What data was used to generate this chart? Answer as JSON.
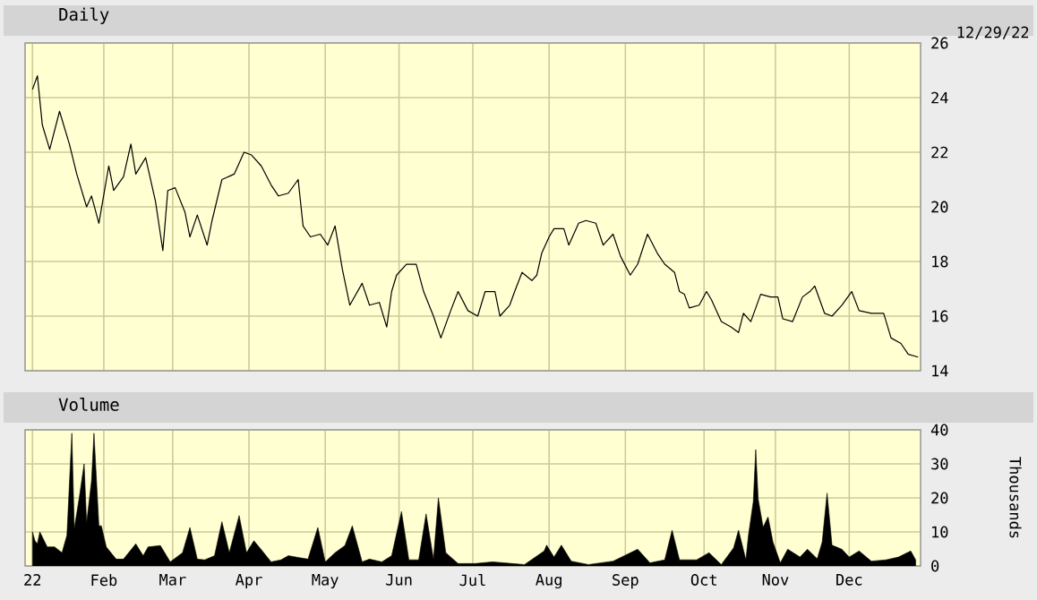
{
  "chart_data": [
    {
      "type": "line",
      "title": "Daily",
      "annotations": [
        "12/29/22"
      ],
      "color": "#000000",
      "grid": true,
      "tick_labels": "y",
      "xlim": [
        "2021-12-31",
        "2022-12-30"
      ],
      "ylim": [
        14,
        26
      ],
      "yticks": [
        14,
        16,
        18,
        20,
        22,
        24,
        26
      ],
      "xticks": [
        {
          "value": "2022-01-03",
          "label": null
        },
        {
          "value": "2022-02-01",
          "label": null
        },
        {
          "value": "2022-03-01",
          "label": null
        },
        {
          "value": "2022-04-01",
          "label": null
        },
        {
          "value": "2022-05-02",
          "label": null
        },
        {
          "value": "2022-06-01",
          "label": null
        },
        {
          "value": "2022-07-01",
          "label": null
        },
        {
          "value": "2022-08-01",
          "label": null
        },
        {
          "value": "2022-09-01",
          "label": null
        },
        {
          "value": "2022-10-03",
          "label": null
        },
        {
          "value": "2022-11-01",
          "label": null
        },
        {
          "value": "2022-12-01",
          "label": null
        }
      ],
      "x": [
        "2022-01-03",
        "2022-01-05",
        "2022-01-07",
        "2022-01-10",
        "2022-01-14",
        "2022-01-18",
        "2022-01-21",
        "2022-01-25",
        "2022-01-27",
        "2022-01-30",
        "2022-02-03",
        "2022-02-05",
        "2022-02-09",
        "2022-02-12",
        "2022-02-14",
        "2022-02-18",
        "2022-02-22",
        "2022-02-25",
        "2022-02-27",
        "2022-03-02",
        "2022-03-06",
        "2022-03-08",
        "2022-03-11",
        "2022-03-15",
        "2022-03-17",
        "2022-03-21",
        "2022-03-26",
        "2022-03-30",
        "2022-04-02",
        "2022-04-06",
        "2022-04-10",
        "2022-04-13",
        "2022-04-17",
        "2022-04-21",
        "2022-04-23",
        "2022-04-26",
        "2022-04-30",
        "2022-05-03",
        "2022-05-06",
        "2022-05-09",
        "2022-05-12",
        "2022-05-17",
        "2022-05-20",
        "2022-05-24",
        "2022-05-27",
        "2022-05-29",
        "2022-05-31",
        "2022-06-04",
        "2022-06-08",
        "2022-06-11",
        "2022-06-15",
        "2022-06-18",
        "2022-06-22",
        "2022-06-25",
        "2022-06-29",
        "2022-07-03",
        "2022-07-06",
        "2022-07-10",
        "2022-07-12",
        "2022-07-16",
        "2022-07-18",
        "2022-07-21",
        "2022-07-25",
        "2022-07-27",
        "2022-07-29",
        "2022-08-01",
        "2022-08-03",
        "2022-08-07",
        "2022-08-09",
        "2022-08-13",
        "2022-08-16",
        "2022-08-20",
        "2022-08-23",
        "2022-08-27",
        "2022-08-30",
        "2022-09-03",
        "2022-09-06",
        "2022-09-10",
        "2022-09-14",
        "2022-09-17",
        "2022-09-21",
        "2022-09-23",
        "2022-09-25",
        "2022-09-27",
        "2022-10-01",
        "2022-10-04",
        "2022-10-06",
        "2022-10-10",
        "2022-10-14",
        "2022-10-17",
        "2022-10-19",
        "2022-10-22",
        "2022-10-26",
        "2022-10-30",
        "2022-11-02",
        "2022-11-04",
        "2022-11-08",
        "2022-11-12",
        "2022-11-15",
        "2022-11-17",
        "2022-11-21",
        "2022-11-24",
        "2022-11-28",
        "2022-12-02",
        "2022-12-05",
        "2022-12-10",
        "2022-12-15",
        "2022-12-18",
        "2022-12-22",
        "2022-12-25",
        "2022-12-29"
      ],
      "values": [
        24.3,
        24.8,
        23.0,
        22.1,
        23.5,
        22.3,
        21.2,
        20.0,
        20.4,
        19.4,
        21.5,
        20.6,
        21.1,
        22.3,
        21.2,
        21.8,
        20.2,
        18.4,
        20.6,
        20.7,
        19.8,
        18.9,
        19.7,
        18.6,
        19.5,
        21.0,
        21.2,
        22.0,
        21.9,
        21.5,
        20.8,
        20.4,
        20.5,
        21.0,
        19.3,
        18.9,
        19.0,
        18.6,
        19.3,
        17.7,
        16.4,
        17.2,
        16.4,
        16.5,
        15.6,
        16.9,
        17.5,
        17.9,
        17.9,
        16.9,
        16.0,
        15.2,
        16.2,
        16.9,
        16.2,
        16.0,
        16.9,
        16.9,
        16.0,
        16.4,
        16.9,
        17.6,
        17.3,
        17.5,
        18.3,
        18.9,
        19.2,
        19.2,
        18.6,
        19.4,
        19.5,
        19.4,
        18.6,
        19.0,
        18.2,
        17.5,
        17.9,
        19.0,
        18.3,
        17.9,
        17.6,
        16.9,
        16.8,
        16.3,
        16.4,
        16.9,
        16.6,
        15.8,
        15.6,
        15.4,
        16.1,
        15.8,
        16.8,
        16.7,
        16.7,
        15.9,
        15.8,
        16.7,
        16.9,
        17.1,
        16.1,
        16.0,
        16.4,
        16.9,
        16.2,
        16.1,
        16.1,
        15.2,
        15.0,
        14.6,
        14.5
      ]
    },
    {
      "type": "area",
      "title": "Volume",
      "ylabel": "Thousands",
      "color": "#000000",
      "grid": true,
      "xlim": [
        "2021-12-31",
        "2022-12-30"
      ],
      "ylim": [
        0,
        40
      ],
      "yticks": [
        0,
        10,
        20,
        30,
        40
      ],
      "xticks": [
        {
          "value": "2022-01-03",
          "label": "22"
        },
        {
          "value": "2022-02-01",
          "label": "Feb"
        },
        {
          "value": "2022-03-01",
          "label": "Mar"
        },
        {
          "value": "2022-04-01",
          "label": "Apr"
        },
        {
          "value": "2022-05-02",
          "label": "May"
        },
        {
          "value": "2022-06-01",
          "label": "Jun"
        },
        {
          "value": "2022-07-01",
          "label": "Jul"
        },
        {
          "value": "2022-08-01",
          "label": "Aug"
        },
        {
          "value": "2022-09-01",
          "label": "Sep"
        },
        {
          "value": "2022-10-03",
          "label": "Oct"
        },
        {
          "value": "2022-11-01",
          "label": "Nov"
        },
        {
          "value": "2022-12-01",
          "label": "Dec"
        }
      ],
      "x": [
        "2022-01-03",
        "2022-01-04",
        "2022-01-05",
        "2022-01-06",
        "2022-01-09",
        "2022-01-12",
        "2022-01-15",
        "2022-01-17",
        "2022-01-19",
        "2022-01-20",
        "2022-01-22",
        "2022-01-24",
        "2022-01-25",
        "2022-01-27",
        "2022-01-28",
        "2022-01-30",
        "2022-01-31",
        "2022-02-02",
        "2022-02-06",
        "2022-02-09",
        "2022-02-14",
        "2022-02-17",
        "2022-02-19",
        "2022-02-24",
        "2022-02-28",
        "2022-03-05",
        "2022-03-08",
        "2022-03-11",
        "2022-03-14",
        "2022-03-18",
        "2022-03-21",
        "2022-03-24",
        "2022-03-28",
        "2022-03-31",
        "2022-04-03",
        "2022-04-06",
        "2022-04-10",
        "2022-04-14",
        "2022-04-17",
        "2022-04-21",
        "2022-04-25",
        "2022-04-29",
        "2022-05-02",
        "2022-05-06",
        "2022-05-10",
        "2022-05-13",
        "2022-05-17",
        "2022-05-20",
        "2022-05-25",
        "2022-05-29",
        "2022-06-02",
        "2022-06-05",
        "2022-06-09",
        "2022-06-12",
        "2022-06-15",
        "2022-06-17",
        "2022-06-20",
        "2022-06-25",
        "2022-07-02",
        "2022-07-09",
        "2022-07-17",
        "2022-07-22",
        "2022-07-30",
        "2022-07-31",
        "2022-08-03",
        "2022-08-06",
        "2022-08-10",
        "2022-08-17",
        "2022-08-27",
        "2022-09-06",
        "2022-09-11",
        "2022-09-17",
        "2022-09-20",
        "2022-09-23",
        "2022-09-30",
        "2022-10-05",
        "2022-10-10",
        "2022-10-15",
        "2022-10-17",
        "2022-10-20",
        "2022-10-21",
        "2022-10-23",
        "2022-10-24",
        "2022-10-25",
        "2022-10-27",
        "2022-10-29",
        "2022-10-31",
        "2022-11-03",
        "2022-11-06",
        "2022-11-11",
        "2022-11-14",
        "2022-11-18",
        "2022-11-20",
        "2022-11-22",
        "2022-11-24",
        "2022-11-28",
        "2022-12-01",
        "2022-12-05",
        "2022-12-10",
        "2022-12-16",
        "2022-12-21",
        "2022-12-26",
        "2022-12-28"
      ],
      "values": [
        10,
        7.4,
        6.5,
        10,
        5.6,
        5.6,
        3.9,
        9,
        39,
        11,
        20,
        30,
        12.7,
        25,
        39,
        11.8,
        11.8,
        5.6,
        2,
        2,
        6.5,
        3,
        5.6,
        6,
        1.2,
        3.9,
        11.3,
        2,
        1.8,
        3,
        13,
        3.9,
        14.8,
        3.9,
        7.4,
        4.8,
        1.2,
        1.8,
        3,
        2.5,
        2,
        11.3,
        1.2,
        3.9,
        6,
        11.8,
        1.2,
        2,
        1.2,
        3,
        16,
        1.8,
        1.8,
        15.3,
        2,
        20,
        3.9,
        0.7,
        0.7,
        1.2,
        0.7,
        0.4,
        4.4,
        6.1,
        2.6,
        6.1,
        1.4,
        0.4,
        1.4,
        4.9,
        0.9,
        1.8,
        10.5,
        1.8,
        1.8,
        3.9,
        0.4,
        5.3,
        10.5,
        1.8,
        8.8,
        18.9,
        34.2,
        19.6,
        11.4,
        14.4,
        7,
        0.9,
        4.9,
        2.6,
        4.9,
        2.1,
        7,
        21.4,
        6.1,
        4.9,
        2.6,
        4.4,
        1.4,
        1.8,
        2.6,
        4.4,
        1.8
      ]
    }
  ]
}
